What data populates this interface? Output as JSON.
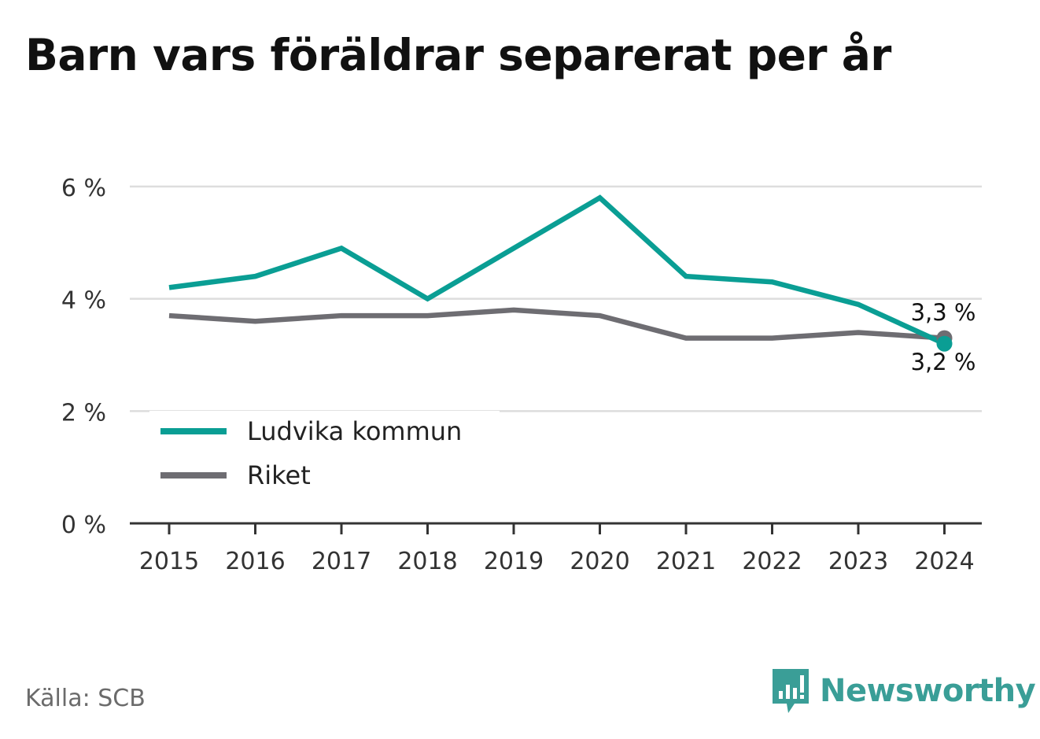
{
  "title": "Barn vars föräldrar separerat per år",
  "source": "Källa: SCB",
  "brand": {
    "name": "Newsworthy",
    "logo_icon": "newsworthy-logo-icon",
    "color": "#3a9e97"
  },
  "colors": {
    "series_0": "#0a9e94",
    "series_1": "#6e6d72",
    "grid": "#dddddd",
    "axis": "#333333",
    "text": "#222222"
  },
  "chart_data": {
    "type": "line",
    "title": "Barn vars föräldrar separerat per år",
    "xlabel": "",
    "ylabel": "",
    "categories": [
      "2015",
      "2016",
      "2017",
      "2018",
      "2019",
      "2020",
      "2021",
      "2022",
      "2023",
      "2024"
    ],
    "series": [
      {
        "name": "Ludvika kommun",
        "values": [
          4.2,
          4.4,
          4.9,
          4.0,
          4.9,
          5.8,
          4.4,
          4.3,
          3.9,
          3.2
        ]
      },
      {
        "name": "Riket",
        "values": [
          3.7,
          3.6,
          3.7,
          3.7,
          3.8,
          3.7,
          3.3,
          3.3,
          3.4,
          3.3
        ]
      }
    ],
    "ylim": [
      0,
      6
    ],
    "yticks": [
      0,
      2,
      4,
      6
    ],
    "ytick_labels": [
      "0 %",
      "2 %",
      "4 %",
      "6 %"
    ],
    "end_labels": [
      "3,2 %",
      "3,3 %"
    ],
    "grid": true,
    "legend_position": "bottom-left"
  }
}
